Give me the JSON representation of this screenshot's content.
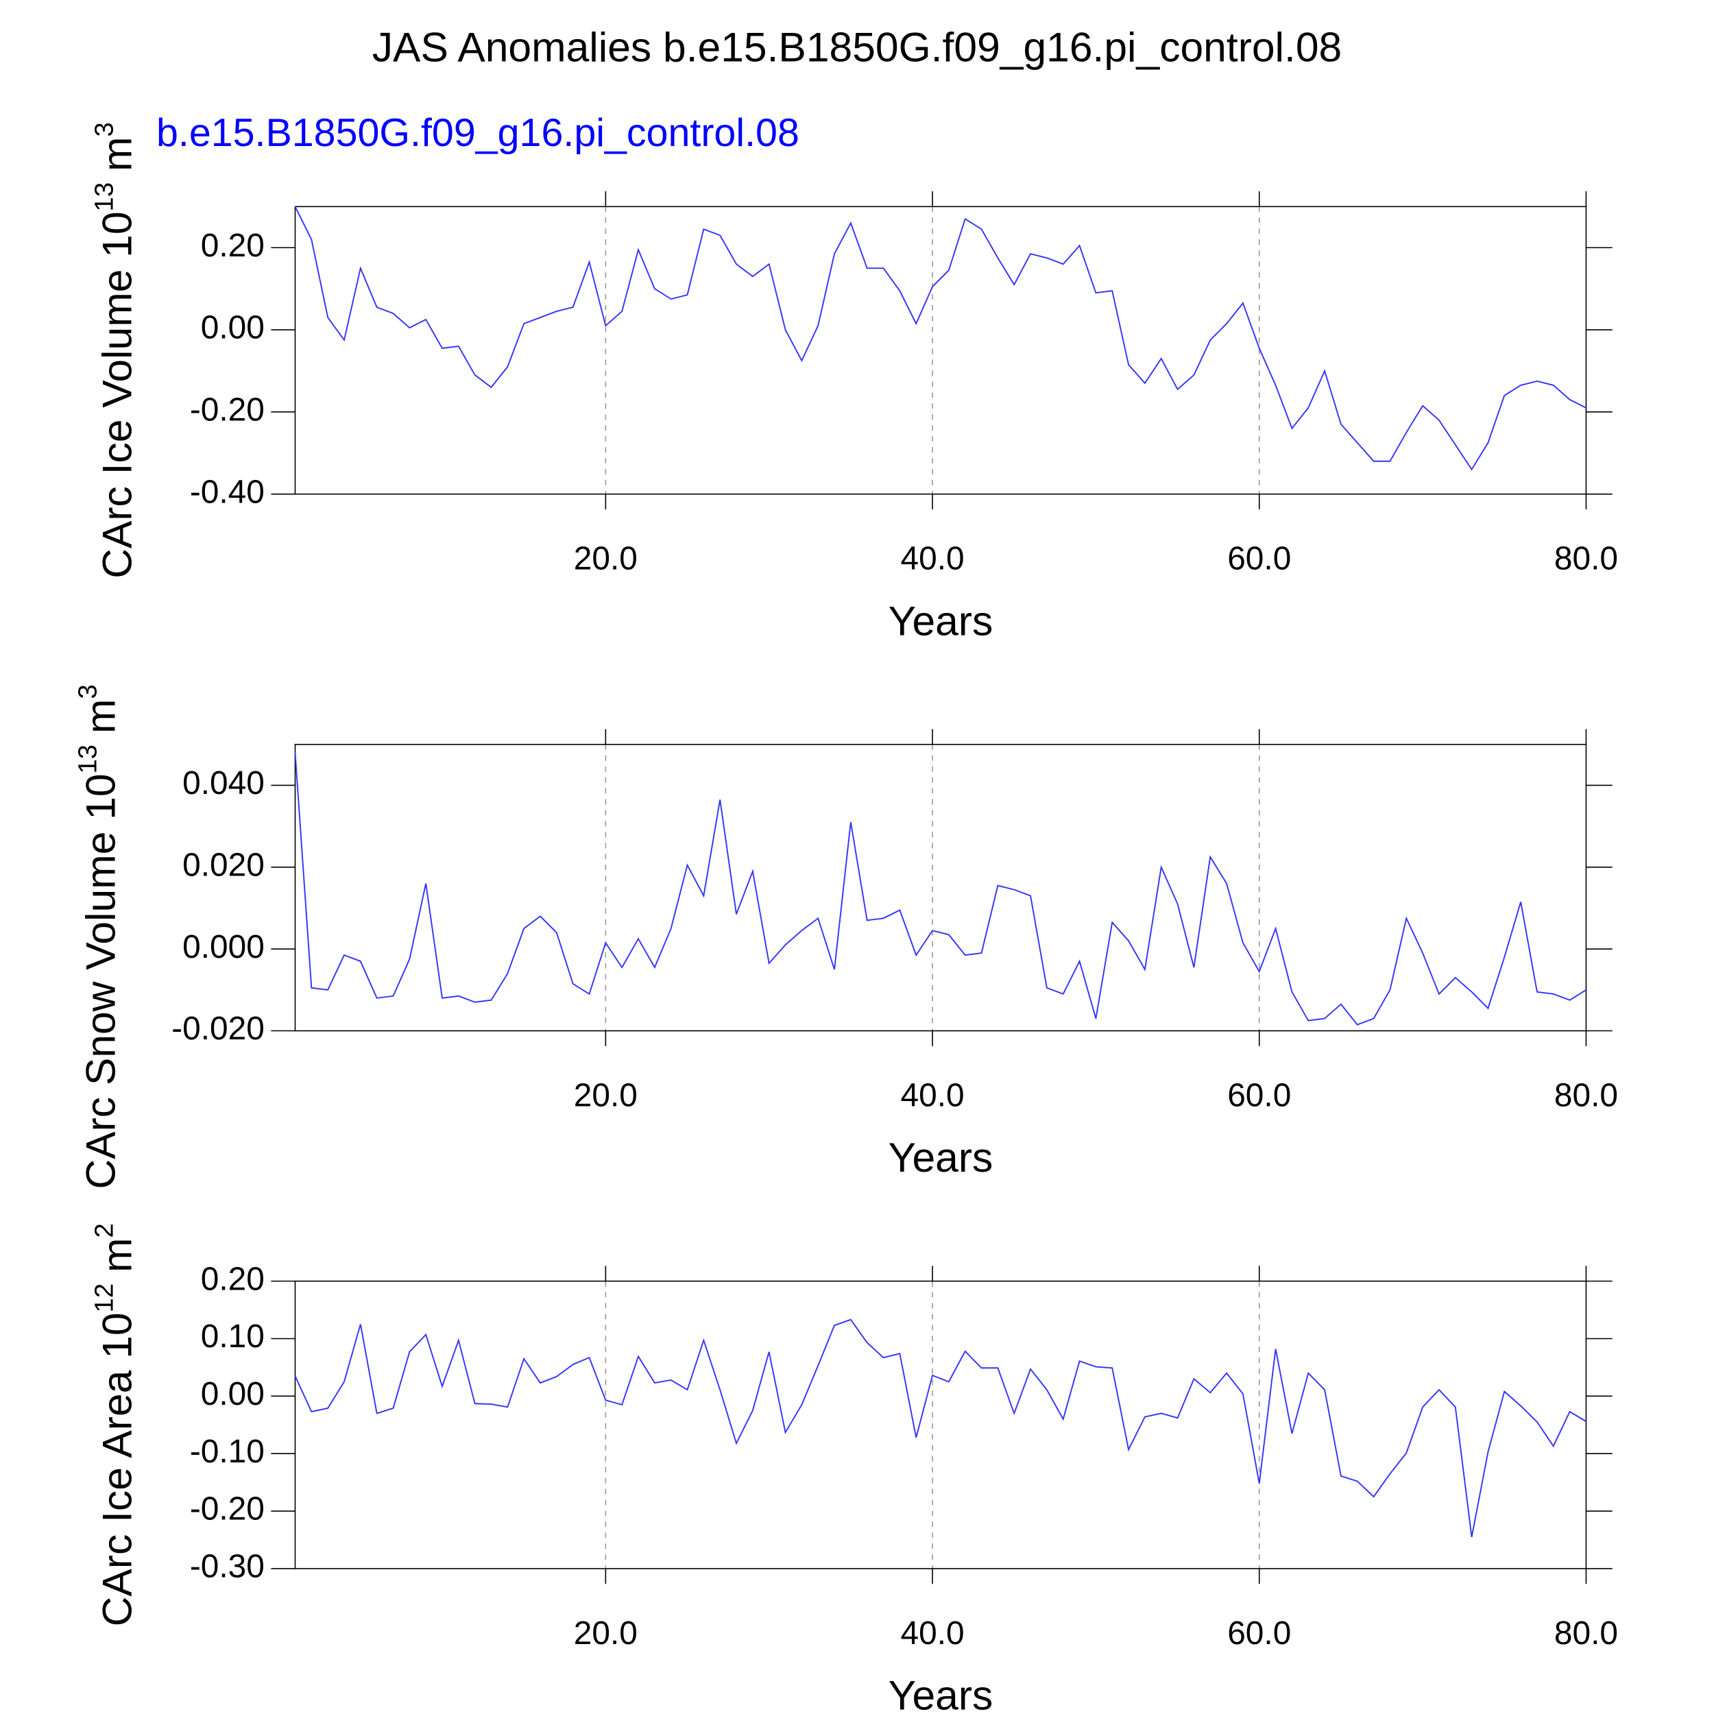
{
  "chart_data": [
    {
      "type": "line",
      "title": "JAS Anomalies b.e15.B1850G.f09_g16.pi_control.08",
      "subtitle": "b.e15.B1850G.f09_g16.pi_control.08",
      "xlabel": "Years",
      "ylabel_parts": [
        "CArc Ice Volume 10",
        "13",
        "m",
        "3"
      ],
      "x": [
        1,
        2,
        3,
        4,
        5,
        6,
        7,
        8,
        9,
        10,
        11,
        12,
        13,
        14,
        15,
        16,
        17,
        18,
        19,
        20,
        21,
        22,
        23,
        24,
        25,
        26,
        27,
        28,
        29,
        30,
        31,
        32,
        33,
        34,
        35,
        36,
        37,
        38,
        39,
        40,
        41,
        42,
        43,
        44,
        45,
        46,
        47,
        48,
        49,
        50,
        51,
        52,
        53,
        54,
        55,
        56,
        57,
        58,
        59,
        60,
        61,
        62,
        63,
        64,
        65,
        66,
        67,
        68,
        69,
        70,
        71,
        72,
        73,
        74,
        75,
        76,
        77,
        78,
        79,
        80
      ],
      "xlim": [
        1,
        80
      ],
      "xticks": [
        {
          "value": 20,
          "label": "20.0"
        },
        {
          "value": 40,
          "label": "40.0"
        },
        {
          "value": 60,
          "label": "60.0"
        },
        {
          "value": 80,
          "label": "80.0"
        }
      ],
      "ylim": [
        -0.4,
        0.3
      ],
      "yticks": [
        {
          "value": -0.4,
          "label": "-0.40"
        },
        {
          "value": -0.2,
          "label": "-0.20"
        },
        {
          "value": 0,
          "label": "0.00"
        },
        {
          "value": 0.2,
          "label": "0.20"
        }
      ],
      "grid": true,
      "series": [
        {
          "color": "#3333ff",
          "values": [
            0.3,
            0.22,
            0.03,
            -0.025,
            0.15,
            0.055,
            0.04,
            0.005,
            0.025,
            -0.045,
            -0.04,
            -0.11,
            -0.14,
            -0.09,
            0.015,
            0.03,
            0.045,
            0.055,
            0.165,
            0.01,
            0.045,
            0.195,
            0.1,
            0.075,
            0.085,
            0.245,
            0.23,
            0.16,
            0.13,
            0.16,
            0.0,
            -0.075,
            0.01,
            0.185,
            0.26,
            0.15,
            0.15,
            0.095,
            0.015,
            0.105,
            0.145,
            0.27,
            0.245,
            0.175,
            0.11,
            0.185,
            0.175,
            0.16,
            0.205,
            0.09,
            0.095,
            -0.085,
            -0.13,
            -0.07,
            -0.145,
            -0.11,
            -0.025,
            0.015,
            0.065,
            -0.045,
            -0.135,
            -0.24,
            -0.19,
            -0.1,
            -0.23,
            -0.275,
            -0.32,
            -0.32,
            -0.25,
            -0.185,
            -0.22,
            -0.28,
            -0.34,
            -0.275,
            -0.16,
            -0.135,
            -0.125,
            -0.135,
            -0.17,
            -0.19
          ]
        }
      ]
    },
    {
      "type": "line",
      "xlabel": "Years",
      "ylabel_parts": [
        "CArc Snow Volume 10",
        "13",
        "m",
        "3"
      ],
      "x": [
        1,
        2,
        3,
        4,
        5,
        6,
        7,
        8,
        9,
        10,
        11,
        12,
        13,
        14,
        15,
        16,
        17,
        18,
        19,
        20,
        21,
        22,
        23,
        24,
        25,
        26,
        27,
        28,
        29,
        30,
        31,
        32,
        33,
        34,
        35,
        36,
        37,
        38,
        39,
        40,
        41,
        42,
        43,
        44,
        45,
        46,
        47,
        48,
        49,
        50,
        51,
        52,
        53,
        54,
        55,
        56,
        57,
        58,
        59,
        60,
        61,
        62,
        63,
        64,
        65,
        66,
        67,
        68,
        69,
        70,
        71,
        72,
        73,
        74,
        75,
        76,
        77,
        78,
        79,
        80
      ],
      "xlim": [
        1,
        80
      ],
      "xticks": [
        {
          "value": 20,
          "label": "20.0"
        },
        {
          "value": 40,
          "label": "40.0"
        },
        {
          "value": 60,
          "label": "60.0"
        },
        {
          "value": 80,
          "label": "80.0"
        }
      ],
      "ylim": [
        -0.02,
        0.05
      ],
      "yticks": [
        {
          "value": -0.02,
          "label": "-0.020"
        },
        {
          "value": 0,
          "label": "0.000"
        },
        {
          "value": 0.02,
          "label": "0.020"
        },
        {
          "value": 0.04,
          "label": "0.040"
        }
      ],
      "grid": true,
      "series": [
        {
          "color": "#3333ff",
          "values": [
            0.048,
            -0.0095,
            -0.01,
            -0.0015,
            -0.003,
            -0.012,
            -0.0115,
            -0.0025,
            0.016,
            -0.012,
            -0.0115,
            -0.013,
            -0.0125,
            -0.006,
            0.005,
            0.008,
            0.004,
            -0.0085,
            -0.011,
            0.0015,
            -0.0045,
            0.0025,
            -0.0045,
            0.005,
            0.0205,
            0.013,
            0.0365,
            0.0085,
            0.019,
            -0.0035,
            0.001,
            0.0045,
            0.0075,
            -0.005,
            0.031,
            0.007,
            0.0075,
            0.0095,
            -0.0015,
            0.0045,
            0.0035,
            -0.0015,
            -0.001,
            0.0155,
            0.0145,
            0.013,
            -0.0095,
            -0.011,
            -0.003,
            -0.017,
            0.0065,
            0.002,
            -0.005,
            0.02,
            0.011,
            -0.0045,
            0.0225,
            0.016,
            0.0015,
            -0.0055,
            0.005,
            -0.0105,
            -0.0175,
            -0.017,
            -0.0135,
            -0.0185,
            -0.017,
            -0.01,
            0.0075,
            -0.001,
            -0.011,
            -0.007,
            -0.0105,
            -0.0145,
            -0.002,
            0.0115,
            -0.0105,
            -0.011,
            -0.0125,
            -0.01
          ]
        }
      ]
    },
    {
      "type": "line",
      "xlabel": "Years",
      "ylabel_parts": [
        "CArc Ice Area 10",
        "12",
        "m",
        "2"
      ],
      "x": [
        1,
        2,
        3,
        4,
        5,
        6,
        7,
        8,
        9,
        10,
        11,
        12,
        13,
        14,
        15,
        16,
        17,
        18,
        19,
        20,
        21,
        22,
        23,
        24,
        25,
        26,
        27,
        28,
        29,
        30,
        31,
        32,
        33,
        34,
        35,
        36,
        37,
        38,
        39,
        40,
        41,
        42,
        43,
        44,
        45,
        46,
        47,
        48,
        49,
        50,
        51,
        52,
        53,
        54,
        55,
        56,
        57,
        58,
        59,
        60,
        61,
        62,
        63,
        64,
        65,
        66,
        67,
        68,
        69,
        70,
        71,
        72,
        73,
        74,
        75,
        76,
        77,
        78,
        79,
        80
      ],
      "xlim": [
        1,
        80
      ],
      "xticks": [
        {
          "value": 20,
          "label": "20.0"
        },
        {
          "value": 40,
          "label": "40.0"
        },
        {
          "value": 60,
          "label": "60.0"
        },
        {
          "value": 80,
          "label": "80.0"
        }
      ],
      "ylim": [
        -0.3,
        0.2
      ],
      "yticks": [
        {
          "value": -0.3,
          "label": "-0.30"
        },
        {
          "value": -0.2,
          "label": "-0.20"
        },
        {
          "value": -0.1,
          "label": "-0.10"
        },
        {
          "value": 0,
          "label": "0.00"
        },
        {
          "value": 0.1,
          "label": "0.10"
        },
        {
          "value": 0.2,
          "label": "0.20"
        }
      ],
      "grid": true,
      "series": [
        {
          "color": "#3333ff",
          "values": [
            0.035,
            -0.027,
            -0.021,
            0.025,
            0.125,
            -0.03,
            -0.021,
            0.077,
            0.107,
            0.017,
            0.097,
            -0.013,
            -0.014,
            -0.019,
            0.065,
            0.023,
            0.034,
            0.055,
            0.067,
            -0.007,
            -0.015,
            0.069,
            0.023,
            0.028,
            0.011,
            0.097,
            0.011,
            -0.082,
            -0.025,
            0.077,
            -0.063,
            -0.015,
            0.053,
            0.123,
            0.133,
            0.093,
            0.067,
            0.074,
            -0.072,
            0.036,
            0.025,
            0.078,
            0.049,
            0.049,
            -0.03,
            0.047,
            0.011,
            -0.04,
            0.061,
            0.051,
            0.049,
            -0.093,
            -0.036,
            -0.03,
            -0.038,
            0.03,
            0.006,
            0.04,
            0.004,
            -0.152,
            0.082,
            -0.065,
            0.04,
            0.011,
            -0.139,
            -0.148,
            -0.175,
            -0.135,
            -0.099,
            -0.019,
            0.011,
            -0.019,
            -0.245,
            -0.097,
            0.008,
            -0.017,
            -0.045,
            -0.087,
            -0.027,
            -0.044
          ]
        }
      ]
    }
  ]
}
